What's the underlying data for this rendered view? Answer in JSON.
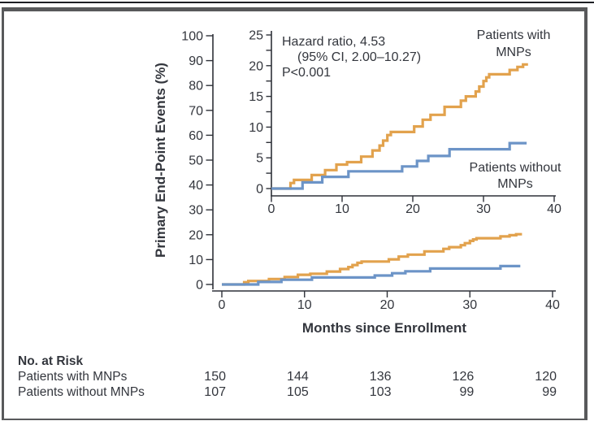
{
  "figure": {
    "colors": {
      "text": "#33363D",
      "axis": "#2E3138",
      "frame": "#58595B",
      "with_mnps": "#E2A24D",
      "without_mnps": "#6C94C7"
    },
    "annotation": {
      "line1": "Hazard ratio, 4.53",
      "line2": "(95% CI, 2.00–10.27)",
      "line3": "P<0.001"
    },
    "curve_labels": {
      "with": {
        "line1": "Patients with",
        "line2": "MNPs"
      },
      "without": {
        "line1": "Patients without",
        "line2": "MNPs"
      }
    },
    "y_axis_title": "Primary End-Point Events (%)",
    "x_axis_title": "Months since Enrollment"
  },
  "main_axis": {
    "y_tick_labels": [
      "0",
      "10",
      "20",
      "30",
      "40",
      "50",
      "60",
      "70",
      "80",
      "90",
      "100"
    ],
    "x_tick_labels": [
      "0",
      "10",
      "20",
      "30",
      "40"
    ]
  },
  "inset_axis": {
    "y_tick_labels": [
      "0",
      "5",
      "10",
      "15",
      "20",
      "25"
    ],
    "x_tick_labels": [
      "0",
      "10",
      "20",
      "30",
      "40"
    ]
  },
  "risk_table": {
    "title": "No. at Risk",
    "rows": [
      {
        "label": "Patients with MNPs",
        "values": [
          "150",
          "144",
          "136",
          "126",
          "120"
        ]
      },
      {
        "label": "Patients without MNPs",
        "values": [
          "107",
          "105",
          "103",
          "99",
          "99"
        ]
      }
    ]
  },
  "chart_data": {
    "type": "line",
    "step": true,
    "title": "",
    "xlabel": "Months since Enrollment",
    "ylabel": "Primary End-Point Events (%)",
    "legend_position": "inline-labels",
    "grid": false,
    "main_plot": {
      "xlim": [
        0,
        40
      ],
      "ylim": [
        0,
        100
      ],
      "x_ticks": [
        0,
        10,
        20,
        30,
        40
      ],
      "y_ticks": [
        0,
        10,
        20,
        30,
        40,
        50,
        60,
        70,
        80,
        90,
        100
      ]
    },
    "inset_plot": {
      "xlim": [
        0,
        40
      ],
      "ylim": [
        0,
        25
      ],
      "x_ticks": [
        0,
        10,
        20,
        30,
        40
      ],
      "y_ticks_major": [
        0,
        5,
        10,
        15,
        20,
        25
      ],
      "y_ticks_minor": [
        2.5,
        7.5,
        12.5,
        17.5,
        22.5
      ]
    },
    "hazard_ratio": {
      "value": 4.53,
      "ci_low": 2.0,
      "ci_high": 10.27,
      "p_value": "P<0.001"
    },
    "series": [
      {
        "name": "Patients with MNPs",
        "color": "#E2A24D",
        "points": [
          [
            0,
            0
          ],
          [
            2.7,
            0.9
          ],
          [
            3.2,
            1.4
          ],
          [
            5.7,
            2.2
          ],
          [
            7.6,
            3.0
          ],
          [
            9.2,
            3.9
          ],
          [
            10.7,
            4.3
          ],
          [
            12.7,
            5.2
          ],
          [
            14.3,
            6.2
          ],
          [
            15.3,
            7.0
          ],
          [
            15.8,
            7.8
          ],
          [
            16.4,
            8.7
          ],
          [
            16.9,
            9.2
          ],
          [
            20.2,
            10.1
          ],
          [
            21.4,
            11.2
          ],
          [
            22.5,
            12.0
          ],
          [
            24.5,
            13.3
          ],
          [
            26.8,
            14.3
          ],
          [
            27.5,
            15.0
          ],
          [
            28.9,
            15.8
          ],
          [
            29.4,
            16.6
          ],
          [
            30.0,
            17.5
          ],
          [
            30.4,
            18.1
          ],
          [
            30.8,
            18.6
          ],
          [
            33.7,
            19.3
          ],
          [
            34.8,
            19.8
          ],
          [
            35.6,
            20.2
          ]
        ],
        "end_x": 36.3
      },
      {
        "name": "Patients without MNPs",
        "color": "#6C94C7",
        "points": [
          [
            0,
            0
          ],
          [
            4.4,
            1.0
          ],
          [
            7.2,
            1.9
          ],
          [
            10.9,
            2.8
          ],
          [
            18.5,
            3.6
          ],
          [
            20.6,
            4.5
          ],
          [
            22.2,
            5.3
          ],
          [
            25.2,
            6.4
          ],
          [
            33.7,
            7.4
          ]
        ],
        "end_x": 36.1
      }
    ]
  }
}
